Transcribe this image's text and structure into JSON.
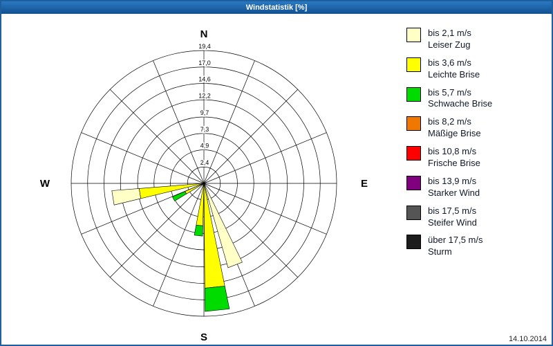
{
  "window": {
    "title": "Windstatistik [%]"
  },
  "footer": {
    "date": "14.10.2014"
  },
  "chart_data": {
    "type": "wind_rose",
    "title": "Windstatistik [%]",
    "units": "%",
    "sectors": 16,
    "grid": true,
    "legend_position": "right",
    "rings": [
      2.4,
      4.9,
      7.3,
      9.7,
      12.2,
      14.6,
      17.0,
      19.4
    ],
    "ring_labels": [
      "2,4",
      "4,9",
      "7,3",
      "9,7",
      "12,2",
      "14,6",
      "17,0",
      "19,4"
    ],
    "compass": [
      {
        "label": "N",
        "deg": 0
      },
      {
        "label": "E",
        "deg": 90
      },
      {
        "label": "S",
        "deg": 180
      },
      {
        "label": "W",
        "deg": 270
      }
    ],
    "classes": [
      {
        "id": "leiser_zug",
        "label_speed": "bis 2,1 m/s",
        "label_name": "Leiser Zug",
        "color": "#FFFFC6"
      },
      {
        "id": "leichte_brise",
        "label_speed": "bis 3,6 m/s",
        "label_name": "Leichte Brise",
        "color": "#FFFF00"
      },
      {
        "id": "schwache_brise",
        "label_speed": "bis 5,7 m/s",
        "label_name": "Schwache Brise",
        "color": "#00DC00"
      },
      {
        "id": "maessige_brise",
        "label_speed": "bis 8,2 m/s",
        "label_name": "Mäßige Brise",
        "color": "#F07800"
      },
      {
        "id": "frische_brise",
        "label_speed": "bis 10,8 m/s",
        "label_name": "Frische Brise",
        "color": "#FF0000"
      },
      {
        "id": "starker_wind",
        "label_speed": "bis 13,9 m/s",
        "label_name": "Starker Wind",
        "color": "#800080"
      },
      {
        "id": "steifer_wind",
        "label_speed": "bis 17,5 m/s",
        "label_name": "Steifer Wind",
        "color": "#555555"
      },
      {
        "id": "sturm",
        "label_speed": "über 17,5 m/s",
        "label_name": "Sturm",
        "color": "#1C1C1C"
      }
    ],
    "petals": [
      {
        "direction_deg": 261,
        "width_deg": 9,
        "segments": [
          {
            "class": "leichte_brise",
            "value": 9.5
          },
          {
            "class": "leiser_zug",
            "value": 4.0
          }
        ]
      },
      {
        "direction_deg": 243,
        "width_deg": 8,
        "segments": [
          {
            "class": "leichte_brise",
            "value": 3.0
          },
          {
            "class": "schwache_brise",
            "value": 2.0
          }
        ]
      },
      {
        "direction_deg": 186,
        "width_deg": 9,
        "segments": [
          {
            "class": "leichte_brise",
            "value": 6.2
          },
          {
            "class": "schwache_brise",
            "value": 1.5
          }
        ]
      },
      {
        "direction_deg": 174,
        "width_deg": 11,
        "segments": [
          {
            "class": "leichte_brise",
            "value": 15.3
          },
          {
            "class": "schwache_brise",
            "value": 3.4
          }
        ]
      },
      {
        "direction_deg": 159,
        "width_deg": 10,
        "segments": [
          {
            "class": "leiser_zug",
            "value": 12.8
          }
        ]
      }
    ]
  }
}
